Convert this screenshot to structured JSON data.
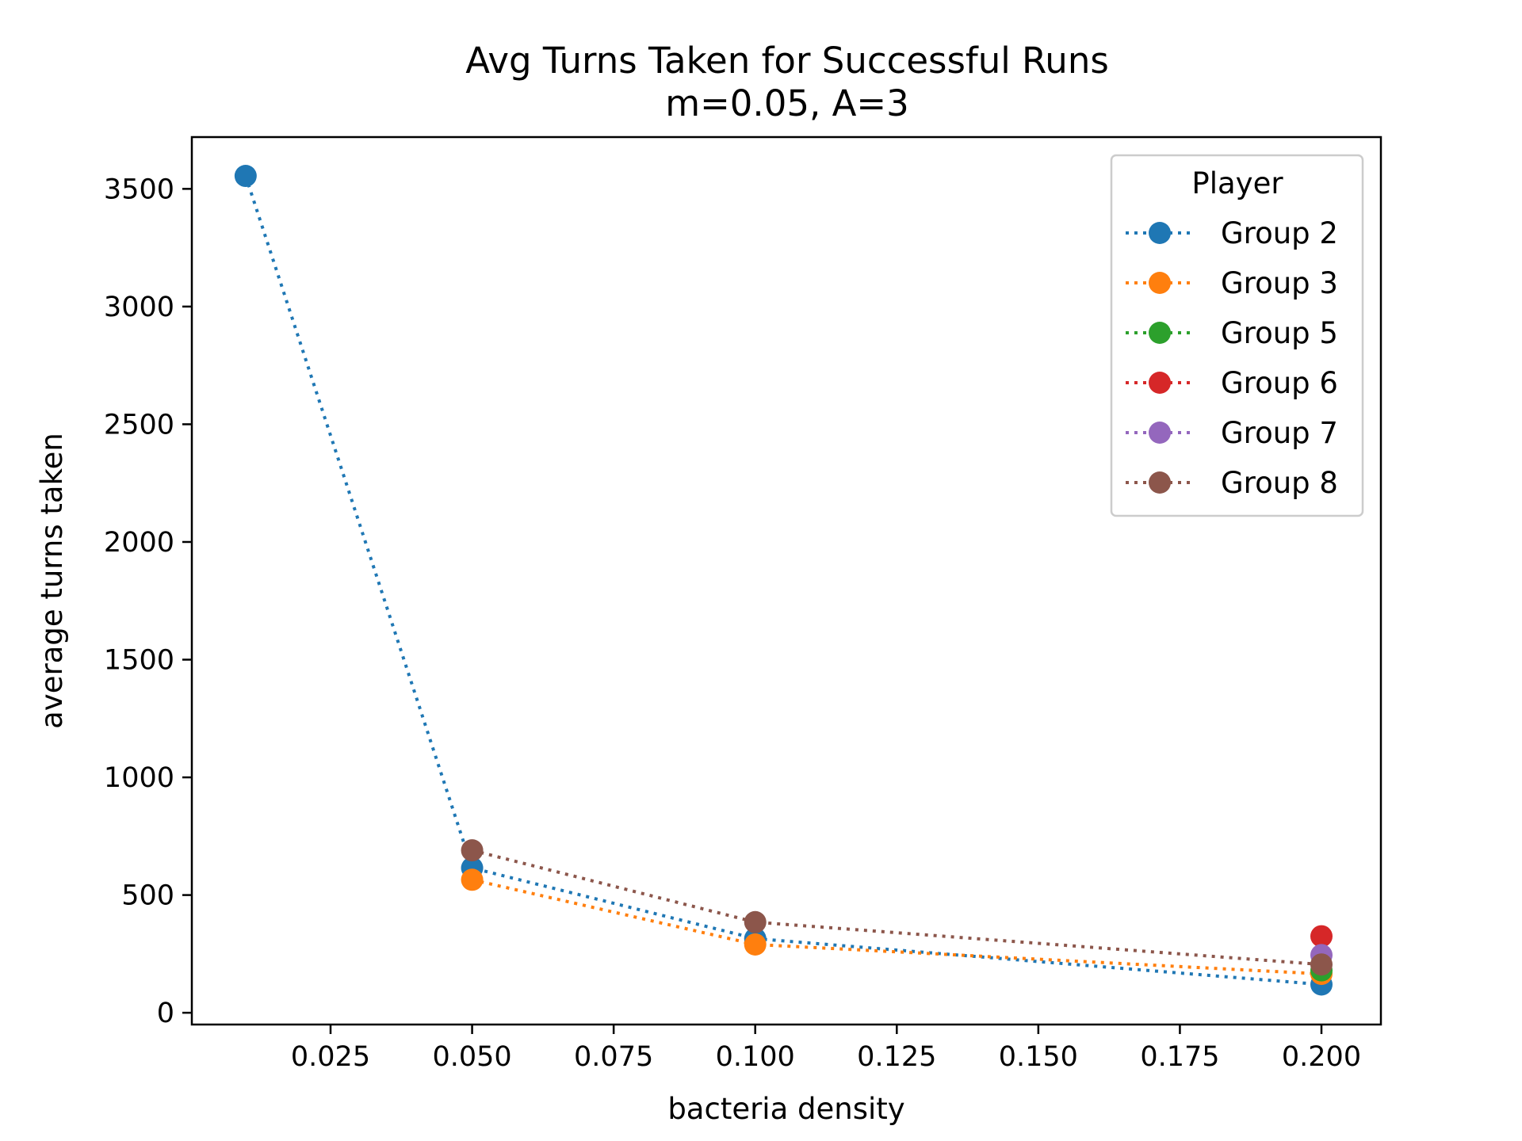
{
  "chart_data": {
    "type": "line",
    "title": "Avg Turns Taken for Successful Runs",
    "subtitle": "m=0.05, A=3",
    "xlabel": "bacteria density",
    "ylabel": "average turns taken",
    "xlim": [
      0.0005,
      0.2105
    ],
    "ylim": [
      -50,
      3720
    ],
    "xticks": [
      0.025,
      0.05,
      0.075,
      0.1,
      0.125,
      0.15,
      0.175,
      0.2
    ],
    "xtick_labels": [
      "0.025",
      "0.050",
      "0.075",
      "0.100",
      "0.125",
      "0.150",
      "0.175",
      "0.200"
    ],
    "yticks": [
      0,
      500,
      1000,
      1500,
      2000,
      2500,
      3000,
      3500
    ],
    "ytick_labels": [
      "0",
      "500",
      "1000",
      "1500",
      "2000",
      "2500",
      "3000",
      "3500"
    ],
    "grid": false,
    "line_style": "dotted",
    "legend": {
      "title": "Player",
      "placement": "top-right"
    },
    "series": [
      {
        "name": "Group 2",
        "color": "#1f77b4",
        "x": [
          0.01,
          0.05,
          0.1,
          0.2
        ],
        "y": [
          3555,
          615,
          315,
          120
        ]
      },
      {
        "name": "Group 3",
        "color": "#ff7f0e",
        "x": [
          0.05,
          0.1,
          0.2
        ],
        "y": [
          565,
          290,
          165
        ]
      },
      {
        "name": "Group 5",
        "color": "#2ca02c",
        "x": [
          0.2
        ],
        "y": [
          180
        ]
      },
      {
        "name": "Group 6",
        "color": "#d62728",
        "x": [
          0.2
        ],
        "y": [
          325
        ]
      },
      {
        "name": "Group 7",
        "color": "#9467bd",
        "x": [
          0.2
        ],
        "y": [
          245
        ]
      },
      {
        "name": "Group 8",
        "color": "#8c564b",
        "x": [
          0.05,
          0.1,
          0.2
        ],
        "y": [
          690,
          385,
          205
        ]
      }
    ]
  }
}
